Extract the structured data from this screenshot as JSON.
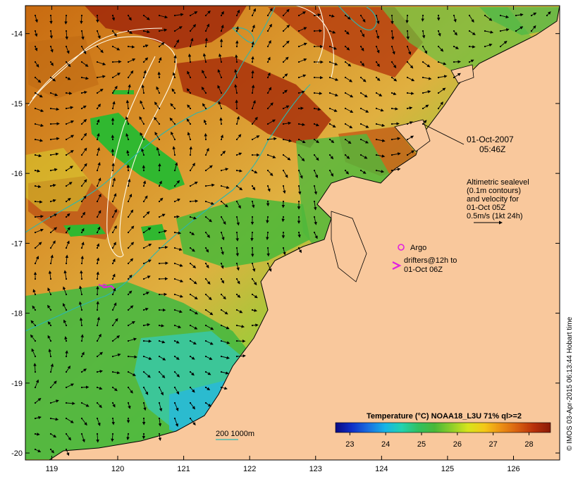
{
  "map": {
    "lon_range": [
      118.6,
      126.7
    ],
    "lat_range": [
      -20.1,
      -13.6
    ],
    "x_ticks": [
      "119",
      "120",
      "121",
      "122",
      "123",
      "124",
      "125",
      "126"
    ],
    "y_ticks": [
      "-14",
      "-15",
      "-16",
      "-17",
      "-18",
      "-19",
      "-20"
    ],
    "land_color": "#f9c89c"
  },
  "annotations": {
    "date": "01-Oct-2007",
    "time": "05:46Z",
    "altimetric_lines": [
      "Altimetric sealevel",
      "(0.1m contours)",
      "and velocity for",
      "01-Oct 05Z",
      "0.5m/s (1kt 24h)"
    ],
    "argo_label": "Argo",
    "drifters_lines": [
      "drifters@12h to",
      "01-Oct 06Z"
    ],
    "isobath_label": "200  1000m"
  },
  "colorbar": {
    "title": "Temperature (°C) NOAA18_L3U 71% ql>=2",
    "ticks": [
      "23",
      "24",
      "25",
      "26",
      "27",
      "28"
    ],
    "colors": [
      "#0a0a82",
      "#1030c8",
      "#1a70e0",
      "#18b4e6",
      "#22d2b0",
      "#30c060",
      "#48b838",
      "#8cce2a",
      "#d6e41c",
      "#f4c818",
      "#ec9014",
      "#d86010",
      "#b8300a",
      "#8a1a06"
    ]
  },
  "credit": "© IMOS 03-Apr-2015 06:13:44 Hobart time"
}
